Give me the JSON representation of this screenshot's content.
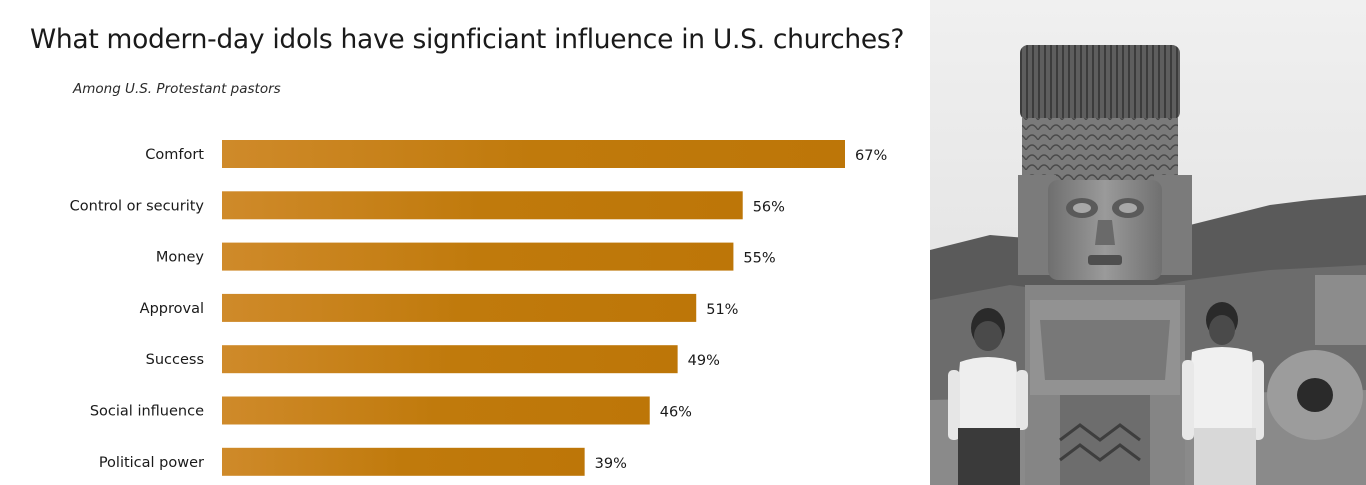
{
  "chart": {
    "title": "What modern-day idols have signficiant influence in U.S. churches?",
    "subtitle": "Among U.S. Protestant pastors"
  },
  "chart_data": {
    "type": "bar",
    "orientation": "horizontal",
    "title": "What modern-day idols have signficiant influence in U.S. churches?",
    "subtitle": "Among U.S. Protestant pastors",
    "categories": [
      "Comfort",
      "Control or security",
      "Money",
      "Approval",
      "Success",
      "Social influence",
      "Political power"
    ],
    "values": [
      67,
      56,
      55,
      51,
      49,
      46,
      39
    ],
    "value_labels": [
      "67%",
      "56%",
      "55%",
      "51%",
      "49%",
      "46%",
      "39%"
    ],
    "unit": "%",
    "xlim": [
      0,
      67
    ],
    "grid": false,
    "legend": "none",
    "bar_color": "#c07a10"
  },
  "photo": {
    "style": "black-and-white photograph"
  }
}
